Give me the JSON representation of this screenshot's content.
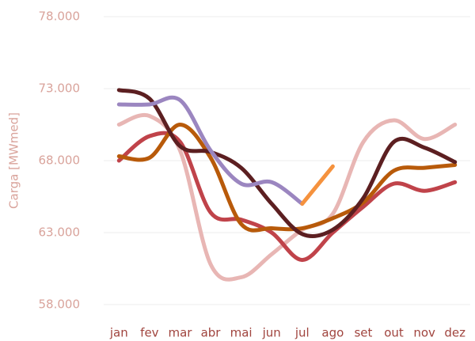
{
  "chart_data": {
    "type": "line",
    "y_label": "Carga [MWmed]",
    "categories": [
      "jan",
      "fev",
      "mar",
      "abr",
      "mai",
      "jun",
      "jul",
      "ago",
      "set",
      "out",
      "nov",
      "dez"
    ],
    "series": [
      {
        "color": "#e8b6b4",
        "values": [
          70500,
          71100,
          68700,
          60800,
          59900,
          61500,
          63200,
          64300,
          69300,
          70800,
          69500,
          70500
        ]
      },
      {
        "color": "#c0434a",
        "values": [
          68000,
          69700,
          69300,
          64400,
          63900,
          63000,
          61100,
          63000,
          64800,
          66400,
          65900,
          66500
        ]
      },
      {
        "color": "#b85a0a",
        "values": [
          68300,
          68200,
          70500,
          68200,
          63600,
          63300,
          63300,
          64000,
          65100,
          67300,
          67500,
          67700
        ]
      },
      {
        "color": "#5c1f21",
        "values": [
          72900,
          72300,
          69000,
          68600,
          67500,
          65000,
          62900,
          63200,
          65400,
          69300,
          68900,
          67900
        ]
      },
      {
        "color": "#9b86c0",
        "values": [
          71900,
          71900,
          72200,
          68700,
          66400,
          66500,
          65000,
          null,
          null,
          null,
          null,
          null
        ]
      },
      {
        "color": "#f5923e",
        "values": [
          null,
          null,
          null,
          null,
          null,
          null,
          65000,
          67600,
          null,
          null,
          null,
          null
        ]
      }
    ],
    "ylim": [
      58000,
      78000
    ],
    "yticks": [
      {
        "value": 58000,
        "label": "58.000"
      },
      {
        "value": 63000,
        "label": "63.000"
      },
      {
        "value": 68000,
        "label": "68.000"
      },
      {
        "value": 73000,
        "label": "73.000"
      },
      {
        "value": 78000,
        "label": "78.000"
      }
    ],
    "grid": true
  }
}
